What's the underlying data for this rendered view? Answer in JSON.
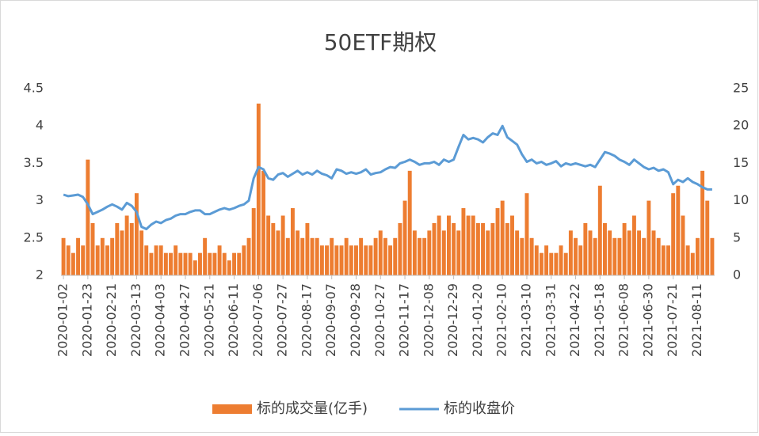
{
  "chart_data": {
    "type": "bar-line",
    "title": "50ETF期权",
    "categories": [
      "2020-01-02",
      null,
      null,
      null,
      null,
      "2020-01-23",
      null,
      null,
      null,
      null,
      "2020-02-21",
      null,
      null,
      null,
      null,
      "2020-03-13",
      null,
      null,
      null,
      null,
      "2020-04-03",
      null,
      null,
      null,
      null,
      "2020-04-27",
      null,
      null,
      null,
      null,
      "2020-05-21",
      null,
      null,
      null,
      null,
      "2020-06-11",
      null,
      null,
      null,
      null,
      "2020-07-06",
      null,
      null,
      null,
      null,
      "2020-07-27",
      null,
      null,
      null,
      null,
      "2020-08-17",
      null,
      null,
      null,
      null,
      "2020-09-07",
      null,
      null,
      null,
      null,
      "2020-09-28",
      null,
      null,
      null,
      null,
      "2020-10-27",
      null,
      null,
      null,
      null,
      "2020-11-17",
      null,
      null,
      null,
      null,
      "2020-12-08",
      null,
      null,
      null,
      null,
      "2020-12-29",
      null,
      null,
      null,
      null,
      "2021-01-20",
      null,
      null,
      null,
      null,
      "2021-02-10",
      null,
      null,
      null,
      null,
      "2021-03-10",
      null,
      null,
      null,
      null,
      "2021-03-31",
      null,
      null,
      null,
      null,
      "2021-04-22",
      null,
      null,
      null,
      null,
      "2021-05-18",
      null,
      null,
      null,
      null,
      "2021-06-08",
      null,
      null,
      null,
      null,
      "2021-06-30",
      null,
      null,
      null,
      null,
      "2021-07-21",
      null,
      null,
      null,
      null,
      "2021-08-11",
      null,
      null,
      null
    ],
    "series": [
      {
        "name": "标的成交量(亿手)",
        "kind": "bar",
        "axis": "y2",
        "color": "#ed7d31",
        "values": [
          5,
          4,
          3,
          5,
          4,
          15.5,
          7,
          4,
          5,
          4,
          5,
          7,
          6,
          8,
          7,
          11,
          6,
          4,
          3,
          4,
          4,
          3,
          3,
          4,
          3,
          3,
          3,
          2,
          3,
          5,
          3,
          3,
          4,
          3,
          2,
          3,
          3,
          4,
          5,
          9,
          23,
          14,
          8,
          7,
          6,
          8,
          5,
          9,
          6,
          5,
          7,
          5,
          5,
          4,
          4,
          5,
          4,
          4,
          5,
          4,
          4,
          5,
          4,
          4,
          5,
          6,
          5,
          4,
          5,
          7,
          10,
          14,
          6,
          5,
          5,
          6,
          7,
          8,
          6,
          8,
          7,
          6,
          9,
          8,
          8,
          7,
          7,
          6,
          7,
          9,
          10,
          7,
          8,
          6,
          5,
          11,
          5,
          4,
          3,
          4,
          3,
          3,
          4,
          3,
          6,
          5,
          4,
          7,
          6,
          5,
          12,
          7,
          6,
          5,
          5,
          7,
          6,
          8,
          6,
          5,
          10,
          6,
          5,
          4,
          4,
          11,
          12,
          8,
          4,
          3,
          5,
          14,
          10,
          5
        ]
      },
      {
        "name": "标的收盘价",
        "kind": "line",
        "axis": "y",
        "color": "#5b9bd5",
        "values": [
          3.08,
          3.06,
          3.07,
          3.08,
          3.05,
          2.95,
          2.82,
          2.85,
          2.88,
          2.92,
          2.95,
          2.92,
          2.88,
          2.97,
          2.93,
          2.85,
          2.65,
          2.62,
          2.68,
          2.72,
          2.7,
          2.74,
          2.76,
          2.8,
          2.82,
          2.82,
          2.85,
          2.87,
          2.87,
          2.82,
          2.82,
          2.85,
          2.88,
          2.9,
          2.88,
          2.9,
          2.93,
          2.95,
          3.0,
          3.3,
          3.45,
          3.42,
          3.3,
          3.28,
          3.35,
          3.37,
          3.32,
          3.36,
          3.4,
          3.35,
          3.38,
          3.35,
          3.4,
          3.36,
          3.34,
          3.3,
          3.42,
          3.4,
          3.36,
          3.38,
          3.36,
          3.38,
          3.42,
          3.35,
          3.37,
          3.38,
          3.42,
          3.45,
          3.44,
          3.5,
          3.52,
          3.55,
          3.52,
          3.48,
          3.5,
          3.5,
          3.52,
          3.48,
          3.55,
          3.52,
          3.55,
          3.72,
          3.88,
          3.82,
          3.84,
          3.82,
          3.78,
          3.85,
          3.9,
          3.88,
          4.0,
          3.85,
          3.8,
          3.75,
          3.62,
          3.52,
          3.55,
          3.5,
          3.52,
          3.48,
          3.5,
          3.53,
          3.46,
          3.5,
          3.48,
          3.5,
          3.48,
          3.46,
          3.48,
          3.45,
          3.55,
          3.65,
          3.63,
          3.6,
          3.55,
          3.52,
          3.48,
          3.55,
          3.5,
          3.45,
          3.42,
          3.44,
          3.4,
          3.42,
          3.38,
          3.22,
          3.28,
          3.25,
          3.3,
          3.25,
          3.22,
          3.18,
          3.15,
          3.15
        ]
      }
    ],
    "ylim": [
      2,
      4.5
    ],
    "yticks": [
      2,
      2.5,
      3,
      3.5,
      4,
      4.5
    ],
    "y2lim": [
      0,
      25
    ],
    "y2ticks": [
      0,
      5,
      10,
      15,
      20,
      25
    ],
    "grid": false,
    "legend": "bottom"
  }
}
